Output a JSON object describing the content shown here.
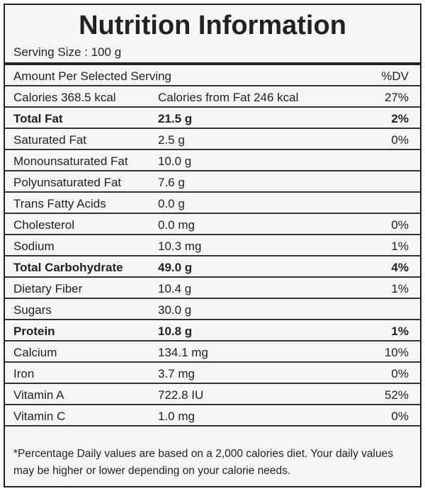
{
  "title": "Nutrition Information",
  "serving_size": "Serving Size : 100 g",
  "header": {
    "label": "Amount Per Selected Serving",
    "dv": "%DV"
  },
  "rows": [
    {
      "name": "Calories 368.5 kcal",
      "amount": "Calories from Fat 246 kcal",
      "dv": "27%"
    },
    {
      "name": "Total Fat",
      "amount": "21.5 g",
      "dv": "2%",
      "bold": true
    },
    {
      "name": "Saturated Fat",
      "amount": "2.5 g",
      "dv": "0%"
    },
    {
      "name": "Monounsaturated Fat",
      "amount": "10.0 g"
    },
    {
      "name": "Polyunsaturated Fat",
      "amount": "7.6 g"
    },
    {
      "name": "Trans Fatty Acids",
      "amount": "0.0 g"
    },
    {
      "name": "Cholesterol",
      "amount": "0.0 mg",
      "dv": "0%"
    },
    {
      "name": "Sodium",
      "amount": "10.3 mg",
      "dv": "1%"
    },
    {
      "name": "Total Carbohydrate",
      "amount": "49.0 g",
      "dv": "4%",
      "bold": true
    },
    {
      "name": "Dietary Fiber",
      "amount": "10.4 g",
      "dv": "1%"
    },
    {
      "name": "Sugars",
      "amount": "30.0 g"
    },
    {
      "name": "Protein",
      "amount": "10.8 g",
      "dv": "1%",
      "bold": true
    },
    {
      "name": "Calcium",
      "amount": "134.1 mg",
      "dv": "10%"
    },
    {
      "name": "Iron",
      "amount": "3.7 mg",
      "dv": "0%"
    },
    {
      "name": "Vitamin A",
      "amount": "722.8 IU",
      "dv": "52%"
    },
    {
      "name": "Vitamin C",
      "amount": "1.0 mg",
      "dv": "0%"
    }
  ],
  "footnote": "*Percentage Daily values are based on a 2,000 calories diet. Your daily values may be higher or lower depending on your calorie needs."
}
